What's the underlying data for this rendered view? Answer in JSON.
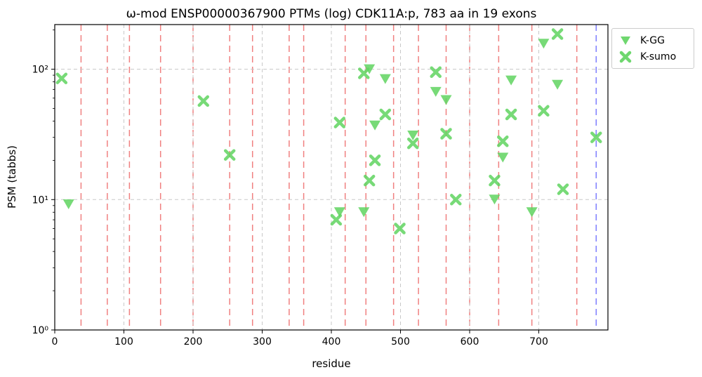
{
  "chart_data": {
    "type": "scatter",
    "title": "ω-mod ENSP00000367900 PTMs (log) CDK11A:p, 783 aa in 19 exons",
    "xlabel": "residue",
    "ylabel": "PSM (tabbs)",
    "xlim": [
      0,
      800
    ],
    "ylim": [
      1,
      220
    ],
    "yscale": "log",
    "x_ticks": [
      "0",
      "100",
      "200",
      "300",
      "400",
      "500",
      "600",
      "700"
    ],
    "y_ticks": [
      {
        "value": 1,
        "label": "10⁰"
      },
      {
        "value": 10,
        "label": "10¹"
      },
      {
        "value": 100,
        "label": "10²"
      }
    ],
    "grid": true,
    "legend_position": "upper-right outside",
    "exon_boundaries": [
      38,
      76,
      108,
      153,
      200,
      253,
      286,
      339,
      360,
      420,
      450,
      490,
      526,
      566,
      600,
      642,
      690,
      755
    ],
    "protein_end": 783,
    "colors": {
      "marker": "#5fd35f",
      "exon_line": "#f08080",
      "end_line": "#7f7fff",
      "grid": "#c8c8c8"
    },
    "series": [
      {
        "name": "K-GG",
        "marker": "triangle-down",
        "points": [
          [
            20,
            9.2
          ],
          [
            412,
            8
          ],
          [
            447,
            8
          ],
          [
            455,
            100
          ],
          [
            463,
            37
          ],
          [
            478,
            84
          ],
          [
            518,
            31
          ],
          [
            551,
            67
          ],
          [
            566,
            58
          ],
          [
            636,
            10
          ],
          [
            648,
            21
          ],
          [
            660,
            82
          ],
          [
            690,
            8
          ],
          [
            707,
            157
          ],
          [
            727,
            76
          ]
        ]
      },
      {
        "name": "K-sumo",
        "marker": "x-thick",
        "points": [
          [
            10,
            85
          ],
          [
            215,
            57
          ],
          [
            253,
            22
          ],
          [
            407,
            7
          ],
          [
            412,
            39
          ],
          [
            447,
            93
          ],
          [
            455,
            14
          ],
          [
            463,
            20
          ],
          [
            478,
            45
          ],
          [
            499,
            6
          ],
          [
            518,
            27
          ],
          [
            551,
            95
          ],
          [
            566,
            32
          ],
          [
            580,
            10
          ],
          [
            636,
            14
          ],
          [
            648,
            28
          ],
          [
            660,
            45
          ],
          [
            707,
            48
          ],
          [
            727,
            186
          ],
          [
            735,
            12
          ],
          [
            783,
            30
          ]
        ]
      }
    ]
  }
}
